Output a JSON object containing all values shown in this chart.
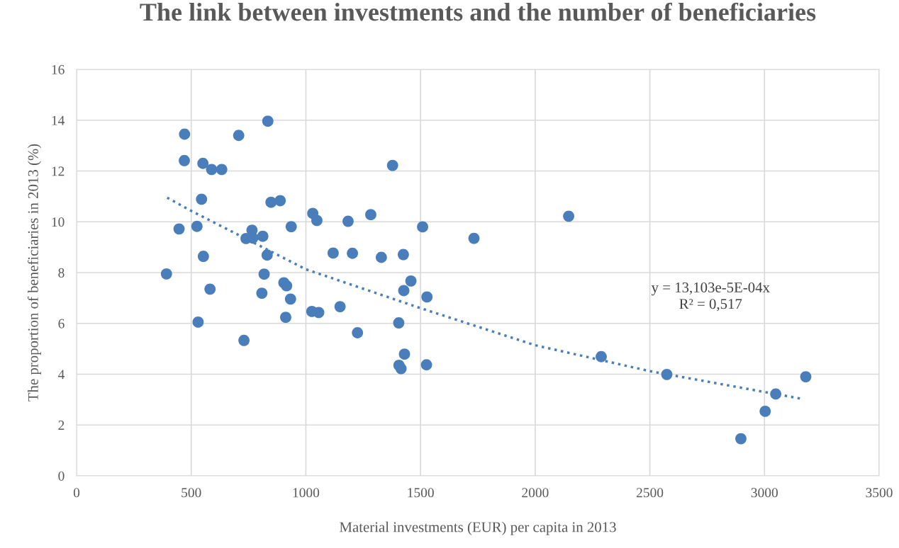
{
  "chart_data": {
    "type": "scatter",
    "title": "The link between investments and the number of beneficiaries",
    "xlabel": "Material investments (EUR) per capita in 2013",
    "ylabel": "The proportion of beneficiaries in 2013 (%)",
    "series": [
      {
        "color": "#4a7ebb",
        "marker": "circle",
        "x": [
          471,
          707,
          834,
          470,
          551,
          589,
          633,
          545,
          848,
          888,
          447,
          525,
          765,
          739,
          768,
          812,
          936,
          553,
          831,
          392,
          818,
          582,
          808,
          904,
          916,
          933,
          912,
          530,
          730,
          1030,
          1048,
          1184,
          1283,
          1378,
          1509,
          1119,
          1203,
          1329,
          1425,
          1458,
          1427,
          1528,
          1026,
          1056,
          1149,
          1225,
          1405,
          1430,
          1406,
          1415,
          1526,
          1733,
          2146,
          2288,
          2574,
          3049,
          3003,
          2897,
          3180
        ],
        "values": [
          13.45,
          13.4,
          13.96,
          12.41,
          12.3,
          12.06,
          12.06,
          10.89,
          10.77,
          10.83,
          9.72,
          9.82,
          9.67,
          9.34,
          9.36,
          9.43,
          9.81,
          8.64,
          8.69,
          7.95,
          7.94,
          7.35,
          7.19,
          7.6,
          7.48,
          6.96,
          6.24,
          6.05,
          5.33,
          10.33,
          10.05,
          10.02,
          10.28,
          12.22,
          9.8,
          8.77,
          8.76,
          8.6,
          8.71,
          7.67,
          7.29,
          7.04,
          6.47,
          6.43,
          6.66,
          5.63,
          6.02,
          4.79,
          4.35,
          4.22,
          4.37,
          9.35,
          10.22,
          4.69,
          3.99,
          3.22,
          2.54,
          1.46,
          3.9
        ]
      },
      {
        "type": "line",
        "color": "#4a7ebb",
        "line_style": "dotted",
        "x": [
          395,
          500,
          1000,
          1500,
          2000,
          2500,
          3170
        ],
        "values": [
          10.95,
          10.43,
          8.13,
          6.6,
          5.14,
          4.12,
          3.02
        ]
      }
    ],
    "annotations": [
      "y = 13,103e-5E-04x\nR² = 0,517"
    ],
    "xlim": [
      0,
      3500
    ],
    "xticks": [
      0,
      500,
      1000,
      1500,
      2000,
      2500,
      3000,
      3500
    ],
    "ylim": [
      0,
      16
    ],
    "yticks": [
      0,
      2,
      4,
      6,
      8,
      10,
      12,
      14,
      16
    ],
    "grid": true,
    "legend": false
  }
}
